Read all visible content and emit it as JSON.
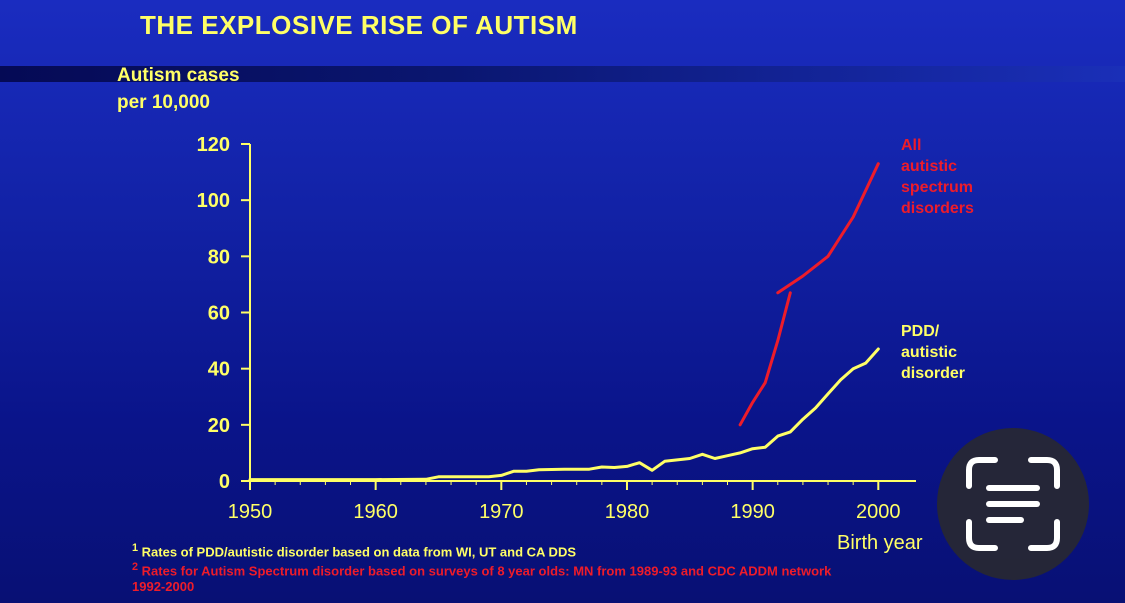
{
  "title": "THE EXPLOSIVE RISE OF AUTISM",
  "footnotes": {
    "note1_mark": "1",
    "note1": "Rates of PDD/autistic disorder based on data from WI, UT and CA DDS",
    "note2_mark": "2",
    "note2": "Rates for Autism Spectrum disorder based on surveys of 8 year olds: MN from 1989-93 and CDC ADDM network",
    "note2_cont": "1992-2000"
  },
  "overlay": {
    "icon": "text-scan-icon",
    "interactable": true
  },
  "colors": {
    "background": "#1222a6",
    "text": "#ffff66",
    "asd": "#ee1c2a",
    "pdd": "#ffff66"
  },
  "chart_data": {
    "type": "line",
    "title": "THE EXPLOSIVE RISE OF AUTISM",
    "ylabel_lines": [
      "Autism cases",
      "per 10,000"
    ],
    "xlabel": "Birth year",
    "xlim": [
      1950,
      2003
    ],
    "ylim": [
      0,
      120
    ],
    "xticks": [
      1950,
      1960,
      1970,
      1980,
      1990,
      2000
    ],
    "yticks": [
      0,
      20,
      40,
      60,
      80,
      100,
      120
    ],
    "grid": false,
    "legend": "inline labels at right end of each series",
    "series": [
      {
        "name": "All autistic spectrum disorders",
        "label_lines": [
          "All",
          "autistic",
          "spectrum",
          "disorders"
        ],
        "color": "#ee1c2a",
        "segments": [
          {
            "x": [
              1989,
              1990,
              1991,
              1992,
              1993
            ],
            "y": [
              20,
              28,
              35,
              50,
              67
            ]
          },
          {
            "x": [
              1992,
              1994,
              1996,
              1998,
              2000
            ],
            "y": [
              67,
              73,
              80,
              94,
              113
            ]
          }
        ]
      },
      {
        "name": "PDD/ autistic disorder",
        "label_lines": [
          "PDD/",
          "autistic",
          "disorder"
        ],
        "color": "#ffff66",
        "x": [
          1950,
          1955,
          1960,
          1964,
          1965,
          1969,
          1970,
          1971,
          1972,
          1973,
          1975,
          1977,
          1978,
          1979,
          1980,
          1981,
          1982,
          1983,
          1984,
          1985,
          1986,
          1987,
          1988,
          1989,
          1990,
          1991,
          1992,
          1993,
          1994,
          1995,
          1996,
          1997,
          1998,
          1999,
          2000
        ],
        "y": [
          0.5,
          0.5,
          0.5,
          0.6,
          1.5,
          1.5,
          2,
          3.5,
          3.5,
          4,
          4.2,
          4.2,
          5,
          4.8,
          5.2,
          6.5,
          3.8,
          7,
          7.5,
          8,
          9.5,
          8,
          9,
          10,
          11.5,
          12,
          16,
          17.5,
          22,
          26,
          31,
          36,
          40,
          42,
          47
        ]
      }
    ]
  }
}
